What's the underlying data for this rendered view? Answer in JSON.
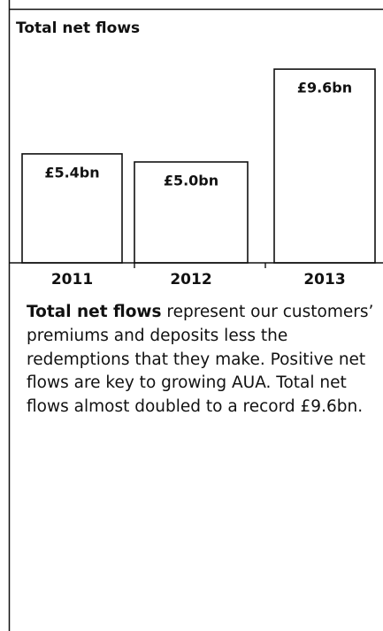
{
  "chart_data": {
    "type": "bar",
    "title": "Total net flows",
    "categories": [
      "2011",
      "2012",
      "2013"
    ],
    "values": [
      5.4,
      5.0,
      9.6
    ],
    "value_labels": [
      "£5.4bn",
      "£5.0bn",
      "£9.6bn"
    ],
    "color": "#ffffff",
    "description_bold": "Total net flows",
    "description": " represent our customers’ premiums and deposits less the redemptions that they make. Positive net flows are key to growing AUA. Total net flows almost doubled to a record £9.6bn."
  }
}
